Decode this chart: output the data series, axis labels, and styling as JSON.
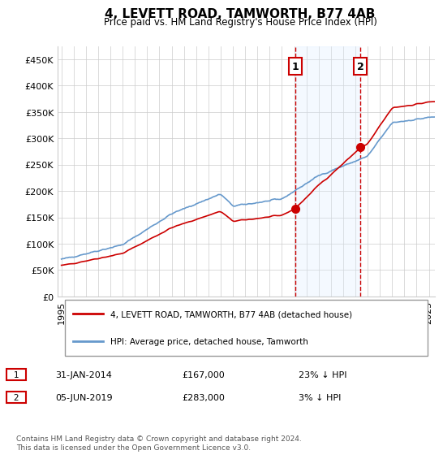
{
  "title": "4, LEVETT ROAD, TAMWORTH, B77 4AB",
  "subtitle": "Price paid vs. HM Land Registry's House Price Index (HPI)",
  "ylim": [
    0,
    475000
  ],
  "yticks": [
    0,
    50000,
    100000,
    150000,
    200000,
    250000,
    300000,
    350000,
    400000,
    450000
  ],
  "ylabel_format": "£{0}K",
  "xlim_start": 1995.0,
  "xlim_end": 2025.5,
  "sale1_date": 2014.083,
  "sale1_price": 167000,
  "sale1_label": "1",
  "sale2_date": 2019.42,
  "sale2_price": 283000,
  "sale2_label": "2",
  "legend_house": "4, LEVETT ROAD, TAMWORTH, B77 4AB (detached house)",
  "legend_hpi": "HPI: Average price, detached house, Tamworth",
  "annotation1": "1    31-JAN-2014        £167,000        23% ↓ HPI",
  "annotation2": "2    05-JUN-2019        £283,000          3% ↓ HPI",
  "footer": "Contains HM Land Registry data © Crown copyright and database right 2024.\nThis data is licensed under the Open Government Licence v3.0.",
  "hpi_color": "#6699cc",
  "house_color": "#cc0000",
  "sale_marker_color": "#cc0000",
  "vline_color": "#cc0000",
  "shade_color": "#ddeeff",
  "grid_color": "#cccccc",
  "background_color": "#ffffff"
}
